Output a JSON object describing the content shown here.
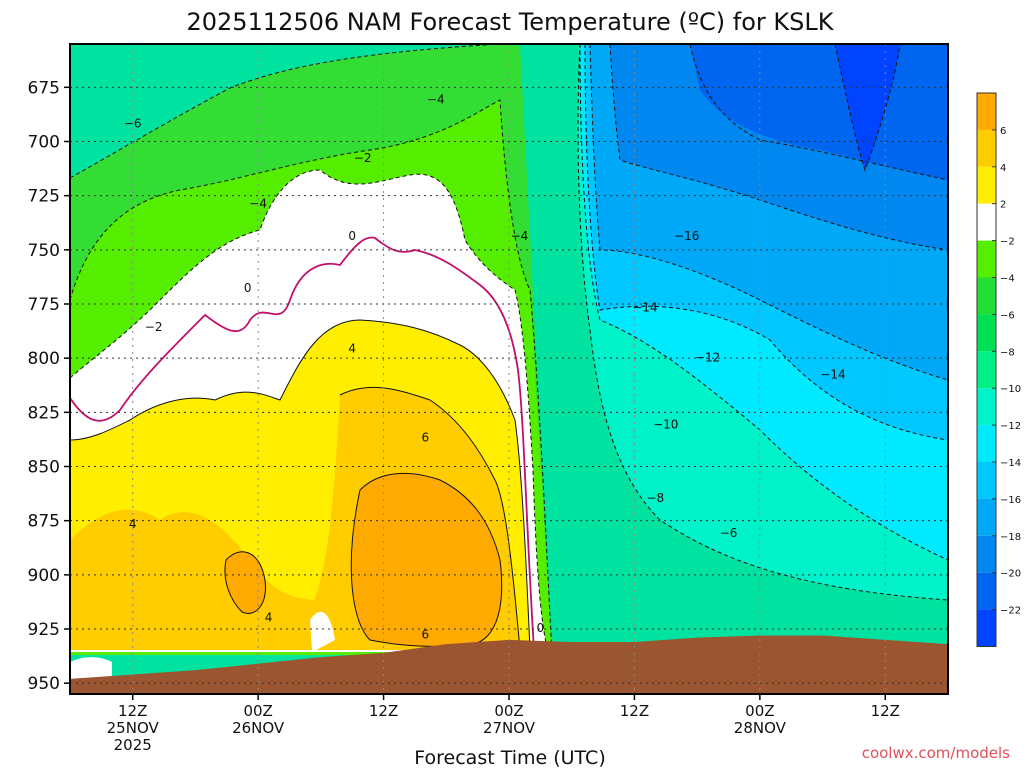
{
  "title": "2025112506 NAM Forecast Temperature (ºC) for KSLK",
  "xlabel": "Forecast Time (UTC)",
  "credit": "coolwx.com/models",
  "colors": {
    "terrain": "#9b5530",
    "contour_line": "#111111",
    "freezing_line": "#c0106a"
  },
  "chart_data": {
    "type": "heatmap",
    "title": "2025112506 NAM Forecast Temperature (ºC) for KSLK",
    "xlabel": "Forecast Time (UTC)",
    "ylabel": "",
    "x_range_hours": [
      0,
      84
    ],
    "y_range_hpa": [
      655,
      955
    ],
    "y_ticks": [
      675,
      700,
      725,
      750,
      775,
      800,
      825,
      850,
      875,
      900,
      925,
      950
    ],
    "x_ticks": [
      {
        "hour": 6,
        "lines": [
          "12Z",
          "25NOV",
          "2025"
        ]
      },
      {
        "hour": 18,
        "lines": [
          "00Z",
          "26NOV"
        ]
      },
      {
        "hour": 30,
        "lines": [
          "12Z"
        ]
      },
      {
        "hour": 42,
        "lines": [
          "00Z",
          "27NOV"
        ]
      },
      {
        "hour": 54,
        "lines": [
          "12Z"
        ]
      },
      {
        "hour": 66,
        "lines": [
          "00Z",
          "28NOV"
        ]
      },
      {
        "hour": 78,
        "lines": [
          "12Z"
        ]
      }
    ],
    "grid": true,
    "legend": "colorbar-right",
    "colorbar": {
      "ticks": [
        6,
        4,
        2,
        -2,
        -4,
        -6,
        -8,
        -10,
        -12,
        -14,
        -16,
        -18,
        -20,
        -22
      ],
      "bands": [
        {
          "from": 6,
          "to": 8,
          "color": "#ffaa00"
        },
        {
          "from": 4,
          "to": 6,
          "color": "#ffcc00"
        },
        {
          "from": 2,
          "to": 4,
          "color": "#ffee00"
        },
        {
          "from": -2,
          "to": 2,
          "color": "#ffffff"
        },
        {
          "from": -4,
          "to": -2,
          "color": "#55ee00"
        },
        {
          "from": -6,
          "to": -4,
          "color": "#22dd33"
        },
        {
          "from": -8,
          "to": -6,
          "color": "#00e055"
        },
        {
          "from": -10,
          "to": -8,
          "color": "#00f088"
        },
        {
          "from": -12,
          "to": -10,
          "color": "#00f2c8"
        },
        {
          "from": -14,
          "to": -12,
          "color": "#00eaff"
        },
        {
          "from": -16,
          "to": -14,
          "color": "#00c8ff"
        },
        {
          "from": -18,
          "to": -16,
          "color": "#00a8f8"
        },
        {
          "from": -20,
          "to": -18,
          "color": "#0088f0"
        },
        {
          "from": -22,
          "to": -20,
          "color": "#0066f0"
        },
        {
          "from": -24,
          "to": -22,
          "color": "#0044ff"
        }
      ]
    },
    "surface_pressure": [
      {
        "hour": 0,
        "hpa": 948
      },
      {
        "hour": 6,
        "hpa": 946
      },
      {
        "hour": 12,
        "hpa": 944
      },
      {
        "hour": 18,
        "hpa": 941
      },
      {
        "hour": 24,
        "hpa": 938
      },
      {
        "hour": 30,
        "hpa": 936
      },
      {
        "hour": 36,
        "hpa": 932
      },
      {
        "hour": 42,
        "hpa": 930
      },
      {
        "hour": 48,
        "hpa": 931
      },
      {
        "hour": 54,
        "hpa": 931
      },
      {
        "hour": 60,
        "hpa": 929
      },
      {
        "hour": 66,
        "hpa": 928
      },
      {
        "hour": 72,
        "hpa": 928
      },
      {
        "hour": 78,
        "hpa": 930
      },
      {
        "hour": 84,
        "hpa": 932
      }
    ],
    "contour_labels": [
      {
        "text": "-6",
        "hour": 6,
        "hpa": 693
      },
      {
        "text": "-4",
        "hour": 18,
        "hpa": 730
      },
      {
        "text": "-4",
        "hour": 35,
        "hpa": 682
      },
      {
        "text": "-2",
        "hour": 28,
        "hpa": 709
      },
      {
        "text": "-2",
        "hour": 8,
        "hpa": 787
      },
      {
        "text": "0",
        "hour": 17,
        "hpa": 769
      },
      {
        "text": "0",
        "hour": 27,
        "hpa": 745
      },
      {
        "text": "4",
        "hour": 27,
        "hpa": 797
      },
      {
        "text": "6",
        "hour": 34,
        "hpa": 838
      },
      {
        "text": "4",
        "hour": 6,
        "hpa": 878
      },
      {
        "text": "4",
        "hour": 19,
        "hpa": 921
      },
      {
        "text": "6",
        "hour": 34,
        "hpa": 929
      },
      {
        "text": "-4",
        "hour": 43,
        "hpa": 745
      },
      {
        "text": "0",
        "hour": 45,
        "hpa": 926
      },
      {
        "text": "-16",
        "hour": 59,
        "hpa": 745
      },
      {
        "text": "-14",
        "hour": 55,
        "hpa": 778
      },
      {
        "text": "-12",
        "hour": 61,
        "hpa": 801
      },
      {
        "text": "-14",
        "hour": 73,
        "hpa": 809
      },
      {
        "text": "-10",
        "hour": 57,
        "hpa": 832
      },
      {
        "text": "-8",
        "hour": 56,
        "hpa": 866
      },
      {
        "text": "-6",
        "hour": 63,
        "hpa": 882
      }
    ]
  }
}
